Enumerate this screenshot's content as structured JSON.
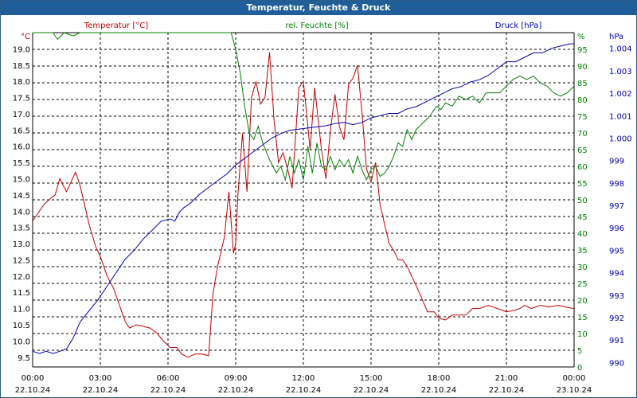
{
  "title": "Temperatur, Feuchte & Druck",
  "colors": {
    "temperature": "#c00000",
    "humidity": "#008000",
    "pressure": "#0000b0",
    "titlebar": "#1f5e99"
  },
  "chart_data": {
    "type": "line",
    "title": "Temperatur, Feuchte & Druck",
    "x_ticks": [
      {
        "time": "00:00",
        "date": "22.10.24"
      },
      {
        "time": "03:00",
        "date": "22.10.24"
      },
      {
        "time": "06:00",
        "date": "22.10.24"
      },
      {
        "time": "09:00",
        "date": "22.10.24"
      },
      {
        "time": "12:00",
        "date": "22.10.24"
      },
      {
        "time": "15:00",
        "date": "22.10.24"
      },
      {
        "time": "18:00",
        "date": "22.10.24"
      },
      {
        "time": "21:00",
        "date": "22.10.24"
      },
      {
        "time": "00:00",
        "date": "23.10.24"
      }
    ],
    "x_range_hours": [
      0,
      24
    ],
    "axes": {
      "temperature": {
        "label": "Temperatur [°C]",
        "unit": "°C",
        "range": [
          9.2,
          19.5
        ],
        "ticks": [
          9.5,
          10.0,
          10.5,
          11.0,
          11.5,
          12.0,
          12.5,
          13.0,
          13.5,
          14.0,
          14.5,
          15.0,
          15.5,
          16.0,
          16.5,
          17.0,
          17.5,
          18.0,
          18.5,
          19.0
        ]
      },
      "humidity": {
        "label": "rel. Feuchte [%]",
        "unit": "%",
        "range": [
          0,
          100
        ],
        "ticks": [
          0,
          5,
          10,
          15,
          20,
          25,
          30,
          35,
          40,
          45,
          50,
          55,
          60,
          65,
          70,
          75,
          80,
          85,
          90,
          95
        ]
      },
      "pressure": {
        "label": "Druck [hPa]",
        "unit": "hPa",
        "range": [
          989.8,
          1004.7
        ],
        "ticks": [
          990,
          991,
          992,
          993,
          994,
          995,
          996,
          997,
          998,
          999,
          "1.000",
          "1.001",
          "1.002",
          "1.003",
          "1.004"
        ]
      }
    },
    "series": [
      {
        "name": "Temperatur",
        "axis": "temperature",
        "x": [
          0,
          0.5,
          0.8,
          1.0,
          1.2,
          1.5,
          1.7,
          1.9,
          2.1,
          2.3,
          2.5,
          2.8,
          3.0,
          3.3,
          3.6,
          3.9,
          4.1,
          4.3,
          4.6,
          4.9,
          5.2,
          5.5,
          5.8,
          6.1,
          6.4,
          6.6,
          6.9,
          7.2,
          7.5,
          7.8,
          8.0,
          8.2,
          8.5,
          8.7,
          8.9,
          9.0,
          9.1,
          9.3,
          9.5,
          9.7,
          9.9,
          10.1,
          10.3,
          10.5,
          10.7,
          10.9,
          11.1,
          11.3,
          11.5,
          11.8,
          12.0,
          12.3,
          12.5,
          12.8,
          13.0,
          13.2,
          13.4,
          13.6,
          13.8,
          14.0,
          14.2,
          14.4,
          14.6,
          14.8,
          15.0,
          15.2,
          15.4,
          15.6,
          15.8,
          16.0,
          16.2,
          16.4,
          16.6,
          16.8,
          17.0,
          17.2,
          17.5,
          17.8,
          18.0,
          18.3,
          18.6,
          18.9,
          19.2,
          19.5,
          19.8,
          20.2,
          20.6,
          21.0,
          21.4,
          21.6,
          21.8,
          22.1,
          22.5,
          22.9,
          23.3,
          23.6,
          24.0
        ],
        "values": [
          13.7,
          14.2,
          14.4,
          14.5,
          15.0,
          14.6,
          14.9,
          15.2,
          14.8,
          14.2,
          13.6,
          12.9,
          12.6,
          12.0,
          11.6,
          11.0,
          10.6,
          10.4,
          10.5,
          10.45,
          10.4,
          10.25,
          10.0,
          9.8,
          9.8,
          9.6,
          9.5,
          9.6,
          9.6,
          9.55,
          11.5,
          12.3,
          13.2,
          14.6,
          12.7,
          13.0,
          14.5,
          16.4,
          14.6,
          17.5,
          18.0,
          17.3,
          17.5,
          18.9,
          16.8,
          15.5,
          15.8,
          15.3,
          14.7,
          17.8,
          18.0,
          15.9,
          17.8,
          15.9,
          15.0,
          16.5,
          17.6,
          16.6,
          16.2,
          17.9,
          18.1,
          18.5,
          17.0,
          15.3,
          14.9,
          15.5,
          14.2,
          13.6,
          13.0,
          12.8,
          12.5,
          12.5,
          12.3,
          12.0,
          11.7,
          11.4,
          10.9,
          10.9,
          10.7,
          10.65,
          10.8,
          10.8,
          10.8,
          11.0,
          11.0,
          11.1,
          11.0,
          10.9,
          10.95,
          11.0,
          11.1,
          11.0,
          11.1,
          11.05,
          11.1,
          11.05,
          11.0
        ]
      },
      {
        "name": "rel. Feuchte",
        "axis": "humidity",
        "x": [
          0,
          0.5,
          0.9,
          1.1,
          1.4,
          1.8,
          2.1,
          2.5,
          3.0,
          3.5,
          4.0,
          4.5,
          5.0,
          5.5,
          6.0,
          6.5,
          7.0,
          7.5,
          8.0,
          8.5,
          8.8,
          9.0,
          9.2,
          9.4,
          9.6,
          9.8,
          10.0,
          10.2,
          10.5,
          10.8,
          11.0,
          11.2,
          11.4,
          11.6,
          11.8,
          12.0,
          12.2,
          12.4,
          12.6,
          12.8,
          13.0,
          13.2,
          13.4,
          13.6,
          13.8,
          14.0,
          14.2,
          14.4,
          14.6,
          14.8,
          15.0,
          15.2,
          15.4,
          15.6,
          15.8,
          16.0,
          16.2,
          16.4,
          16.6,
          16.8,
          17.0,
          17.3,
          17.6,
          17.9,
          18.1,
          18.3,
          18.6,
          18.9,
          19.2,
          19.5,
          19.8,
          20.1,
          20.4,
          20.7,
          21.0,
          21.3,
          21.6,
          21.9,
          22.2,
          22.5,
          22.8,
          23.1,
          23.4,
          23.7,
          24.0
        ],
        "values": [
          100,
          100,
          100,
          98,
          100,
          99,
          100,
          100,
          100,
          100,
          100,
          100,
          100,
          100,
          100,
          100,
          100,
          100,
          100,
          100,
          100,
          95,
          88,
          78,
          70,
          68,
          72,
          67,
          62,
          58,
          60,
          56,
          63,
          58,
          62,
          56,
          66,
          58,
          67,
          60,
          59,
          63,
          59,
          62,
          60,
          62,
          58,
          63,
          59,
          56,
          59,
          60,
          57,
          58,
          60,
          63,
          67,
          66,
          71,
          68,
          71,
          73,
          75,
          78,
          77,
          79,
          78,
          81,
          80,
          81,
          79,
          82,
          82,
          82,
          84,
          86,
          87,
          86,
          87,
          85,
          84,
          82,
          81,
          82,
          84
        ]
      },
      {
        "name": "Druck",
        "axis": "pressure",
        "x": [
          0,
          0.3,
          0.6,
          0.9,
          1.2,
          1.5,
          1.8,
          2.1,
          2.5,
          2.9,
          3.3,
          3.7,
          4.1,
          4.5,
          4.9,
          5.3,
          5.7,
          6.1,
          6.3,
          6.5,
          6.7,
          7.0,
          7.4,
          7.8,
          8.2,
          8.6,
          9.0,
          9.4,
          9.8,
          10.2,
          10.6,
          11.0,
          11.4,
          11.8,
          12.2,
          12.6,
          13.0,
          13.4,
          13.8,
          14.2,
          14.6,
          15.0,
          15.4,
          15.8,
          16.2,
          16.6,
          17.0,
          17.4,
          17.8,
          18.2,
          18.6,
          19.0,
          19.4,
          19.8,
          20.2,
          20.6,
          21.0,
          21.4,
          21.8,
          22.2,
          22.6,
          23.0,
          23.4,
          23.8,
          24.0
        ],
        "values": [
          990.5,
          990.4,
          990.5,
          990.4,
          990.5,
          990.6,
          991.1,
          991.8,
          992.3,
          992.8,
          993.4,
          994.0,
          994.6,
          995.0,
          995.5,
          995.9,
          996.3,
          996.4,
          996.3,
          996.7,
          996.9,
          997.1,
          997.5,
          997.8,
          998.1,
          998.4,
          998.8,
          999.1,
          999.4,
          999.7,
          1000.0,
          1000.2,
          1000.35,
          1000.4,
          1000.45,
          1000.5,
          1000.55,
          1000.65,
          1000.7,
          1000.6,
          1000.7,
          1000.9,
          1001.0,
          1001.1,
          1001.1,
          1001.3,
          1001.4,
          1001.6,
          1001.8,
          1002.0,
          1002.2,
          1002.3,
          1002.5,
          1002.6,
          1002.8,
          1003.1,
          1003.4,
          1003.4,
          1003.6,
          1003.8,
          1003.8,
          1004.0,
          1004.1,
          1004.2,
          1004.2
        ]
      }
    ]
  }
}
